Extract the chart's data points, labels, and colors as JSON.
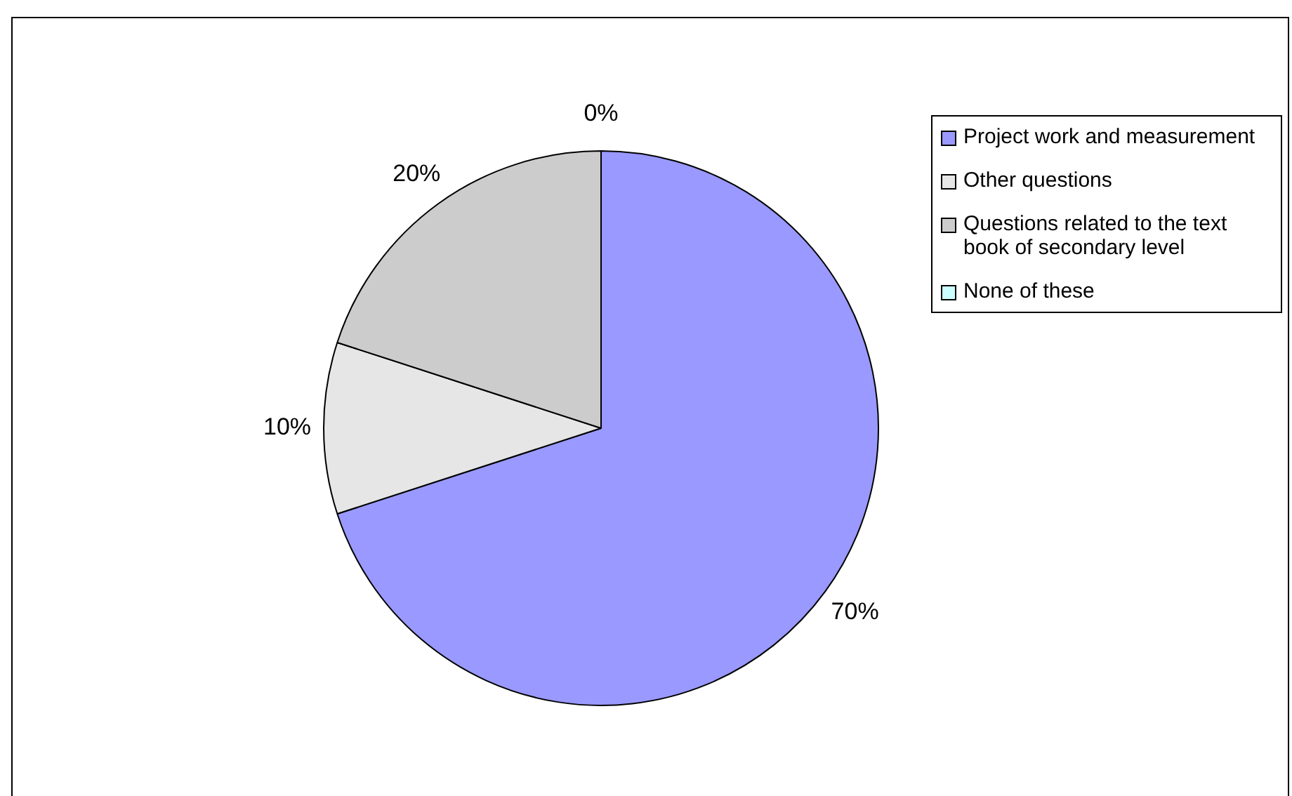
{
  "chart_data": {
    "type": "pie",
    "categories": [
      "Project work and measurement",
      "Other questions",
      "Questions related to the text book of secondary level",
      "None of these"
    ],
    "values": [
      70,
      10,
      20,
      0
    ],
    "colors": [
      "#9999ff",
      "#e6e6e6",
      "#cccccc",
      "#ccffff"
    ],
    "value_labels": [
      "70%",
      "10%",
      "20%",
      "0%"
    ],
    "legend": "right"
  }
}
